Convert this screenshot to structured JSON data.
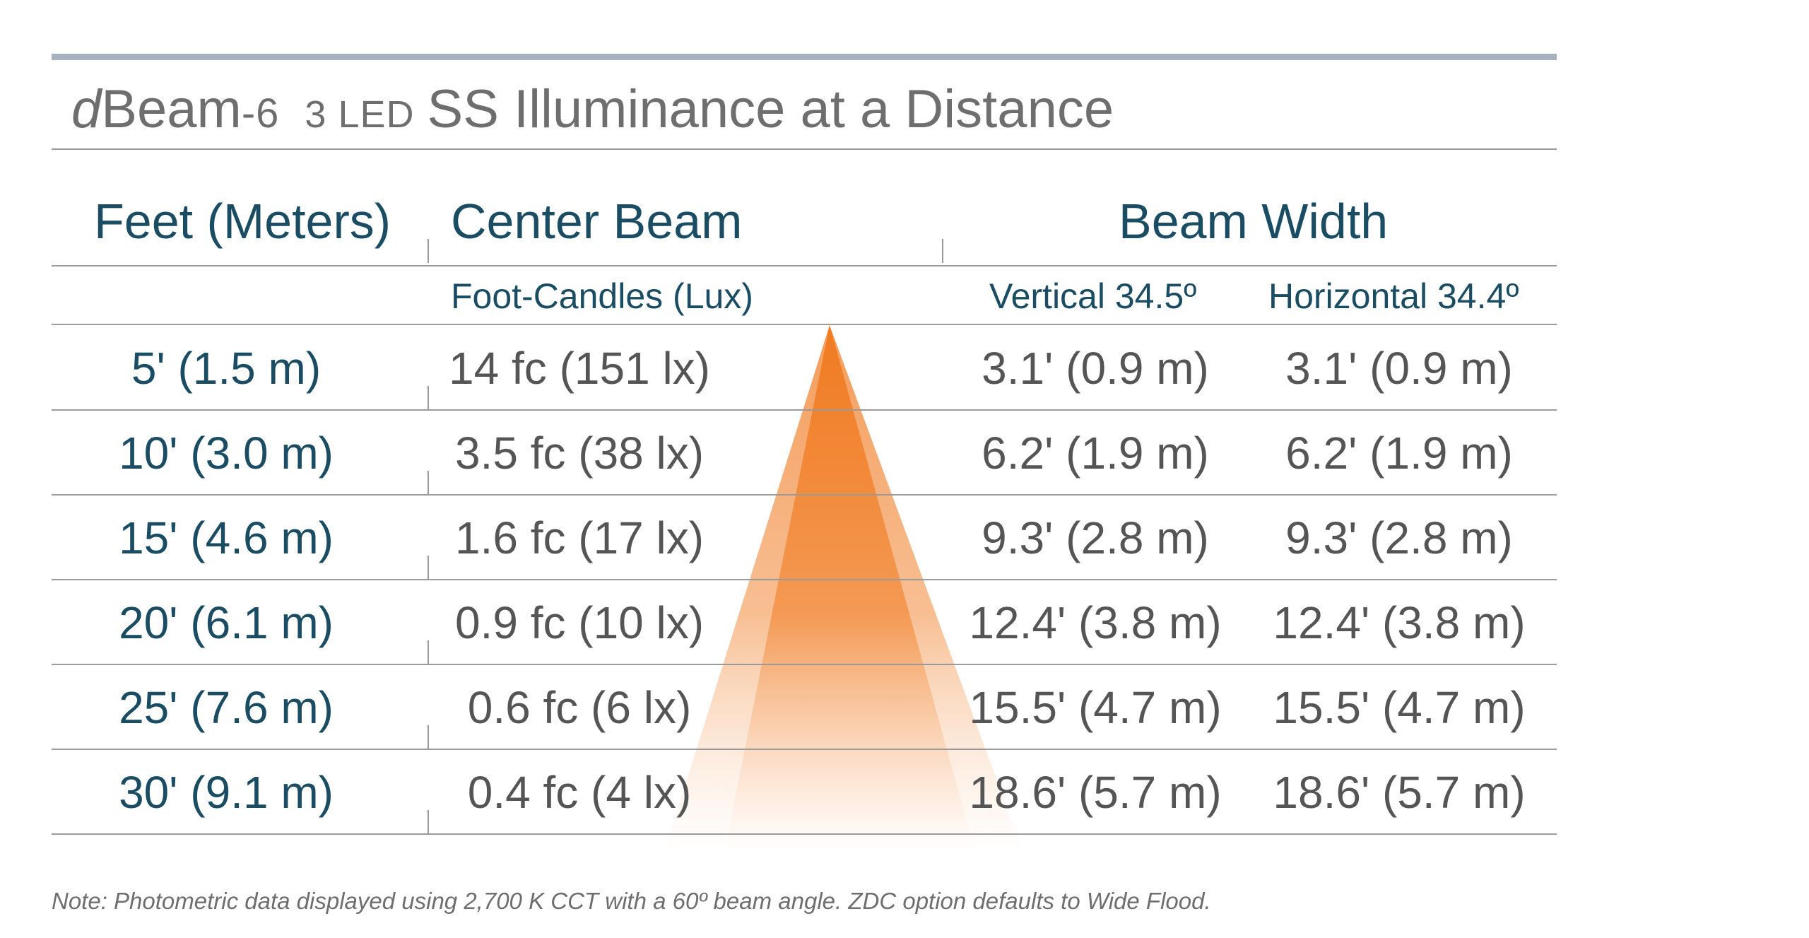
{
  "title": {
    "brand_d": "d",
    "brand_main": "Beam",
    "brand_model": "-6",
    "led": "3 LED",
    "rest": "SS Illuminance at a Distance"
  },
  "headers": {
    "distance": "Feet (Meters)",
    "center_beam": "Center Beam",
    "beam_width": "Beam Width"
  },
  "subheaders": {
    "center_beam": "Foot-Candles (Lux)",
    "vertical": "Vertical 34.5º",
    "horizontal": "Horizontal 34.4º"
  },
  "rows": [
    {
      "distance": "5' (1.5 m)",
      "center_beam": "14 fc (151 lx)",
      "vertical": "3.1' (0.9 m)",
      "horizontal": "3.1' (0.9 m)"
    },
    {
      "distance": "10' (3.0 m)",
      "center_beam": "3.5 fc (38 lx)",
      "vertical": "6.2' (1.9 m)",
      "horizontal": "6.2' (1.9 m)"
    },
    {
      "distance": "15' (4.6 m)",
      "center_beam": "1.6 fc (17 lx)",
      "vertical": "9.3' (2.8 m)",
      "horizontal": "9.3' (2.8 m)"
    },
    {
      "distance": "20' (6.1 m)",
      "center_beam": "0.9 fc (10 lx)",
      "vertical": "12.4' (3.8 m)",
      "horizontal": "12.4' (3.8 m)"
    },
    {
      "distance": "25' (7.6 m)",
      "center_beam": "0.6 fc (6 lx)",
      "vertical": "15.5' (4.7 m)",
      "horizontal": "15.5' (4.7 m)"
    },
    {
      "distance": "30' (9.1 m)",
      "center_beam": "0.4 fc (4 lx)",
      "vertical": "18.6' (5.7 m)",
      "horizontal": "18.6' (5.7 m)"
    }
  ],
  "note": "Note: Photometric data displayed using 2,700 K CCT with a 60º beam angle. ZDC option defaults to Wide Flood.",
  "colors": {
    "header_text": "#1a4d63",
    "body_text": "#555555",
    "rule": "#9a9a9a",
    "top_rule": "#a7b1bf",
    "beam_orange": "#f07b22"
  }
}
